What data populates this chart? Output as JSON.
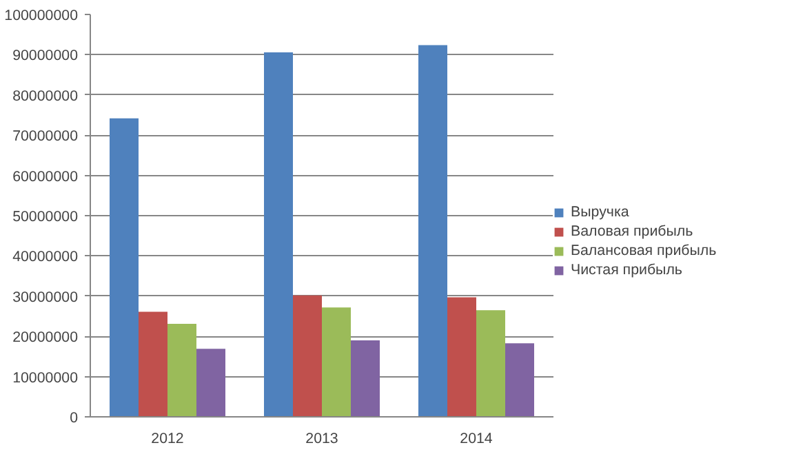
{
  "chart_data": {
    "type": "bar",
    "categories": [
      "2012",
      "2013",
      "2014"
    ],
    "series": [
      {
        "name": "Выручка",
        "color": "#4f81bd",
        "values": [
          74200000,
          90600000,
          92400000
        ]
      },
      {
        "name": "Валовая прибыль",
        "color": "#c0504d",
        "values": [
          26100000,
          30200000,
          29700000
        ]
      },
      {
        "name": "Балансовая прибыль",
        "color": "#9bbb59",
        "values": [
          23100000,
          27200000,
          26500000
        ]
      },
      {
        "name": "Чистая прибыль",
        "color": "#8064a2",
        "values": [
          16900000,
          19000000,
          18300000
        ]
      }
    ],
    "ylim": [
      0,
      100000000
    ],
    "yticks": [
      0,
      10000000,
      20000000,
      30000000,
      40000000,
      50000000,
      60000000,
      70000000,
      80000000,
      90000000,
      100000000
    ],
    "grid": "y",
    "legend": "right"
  }
}
